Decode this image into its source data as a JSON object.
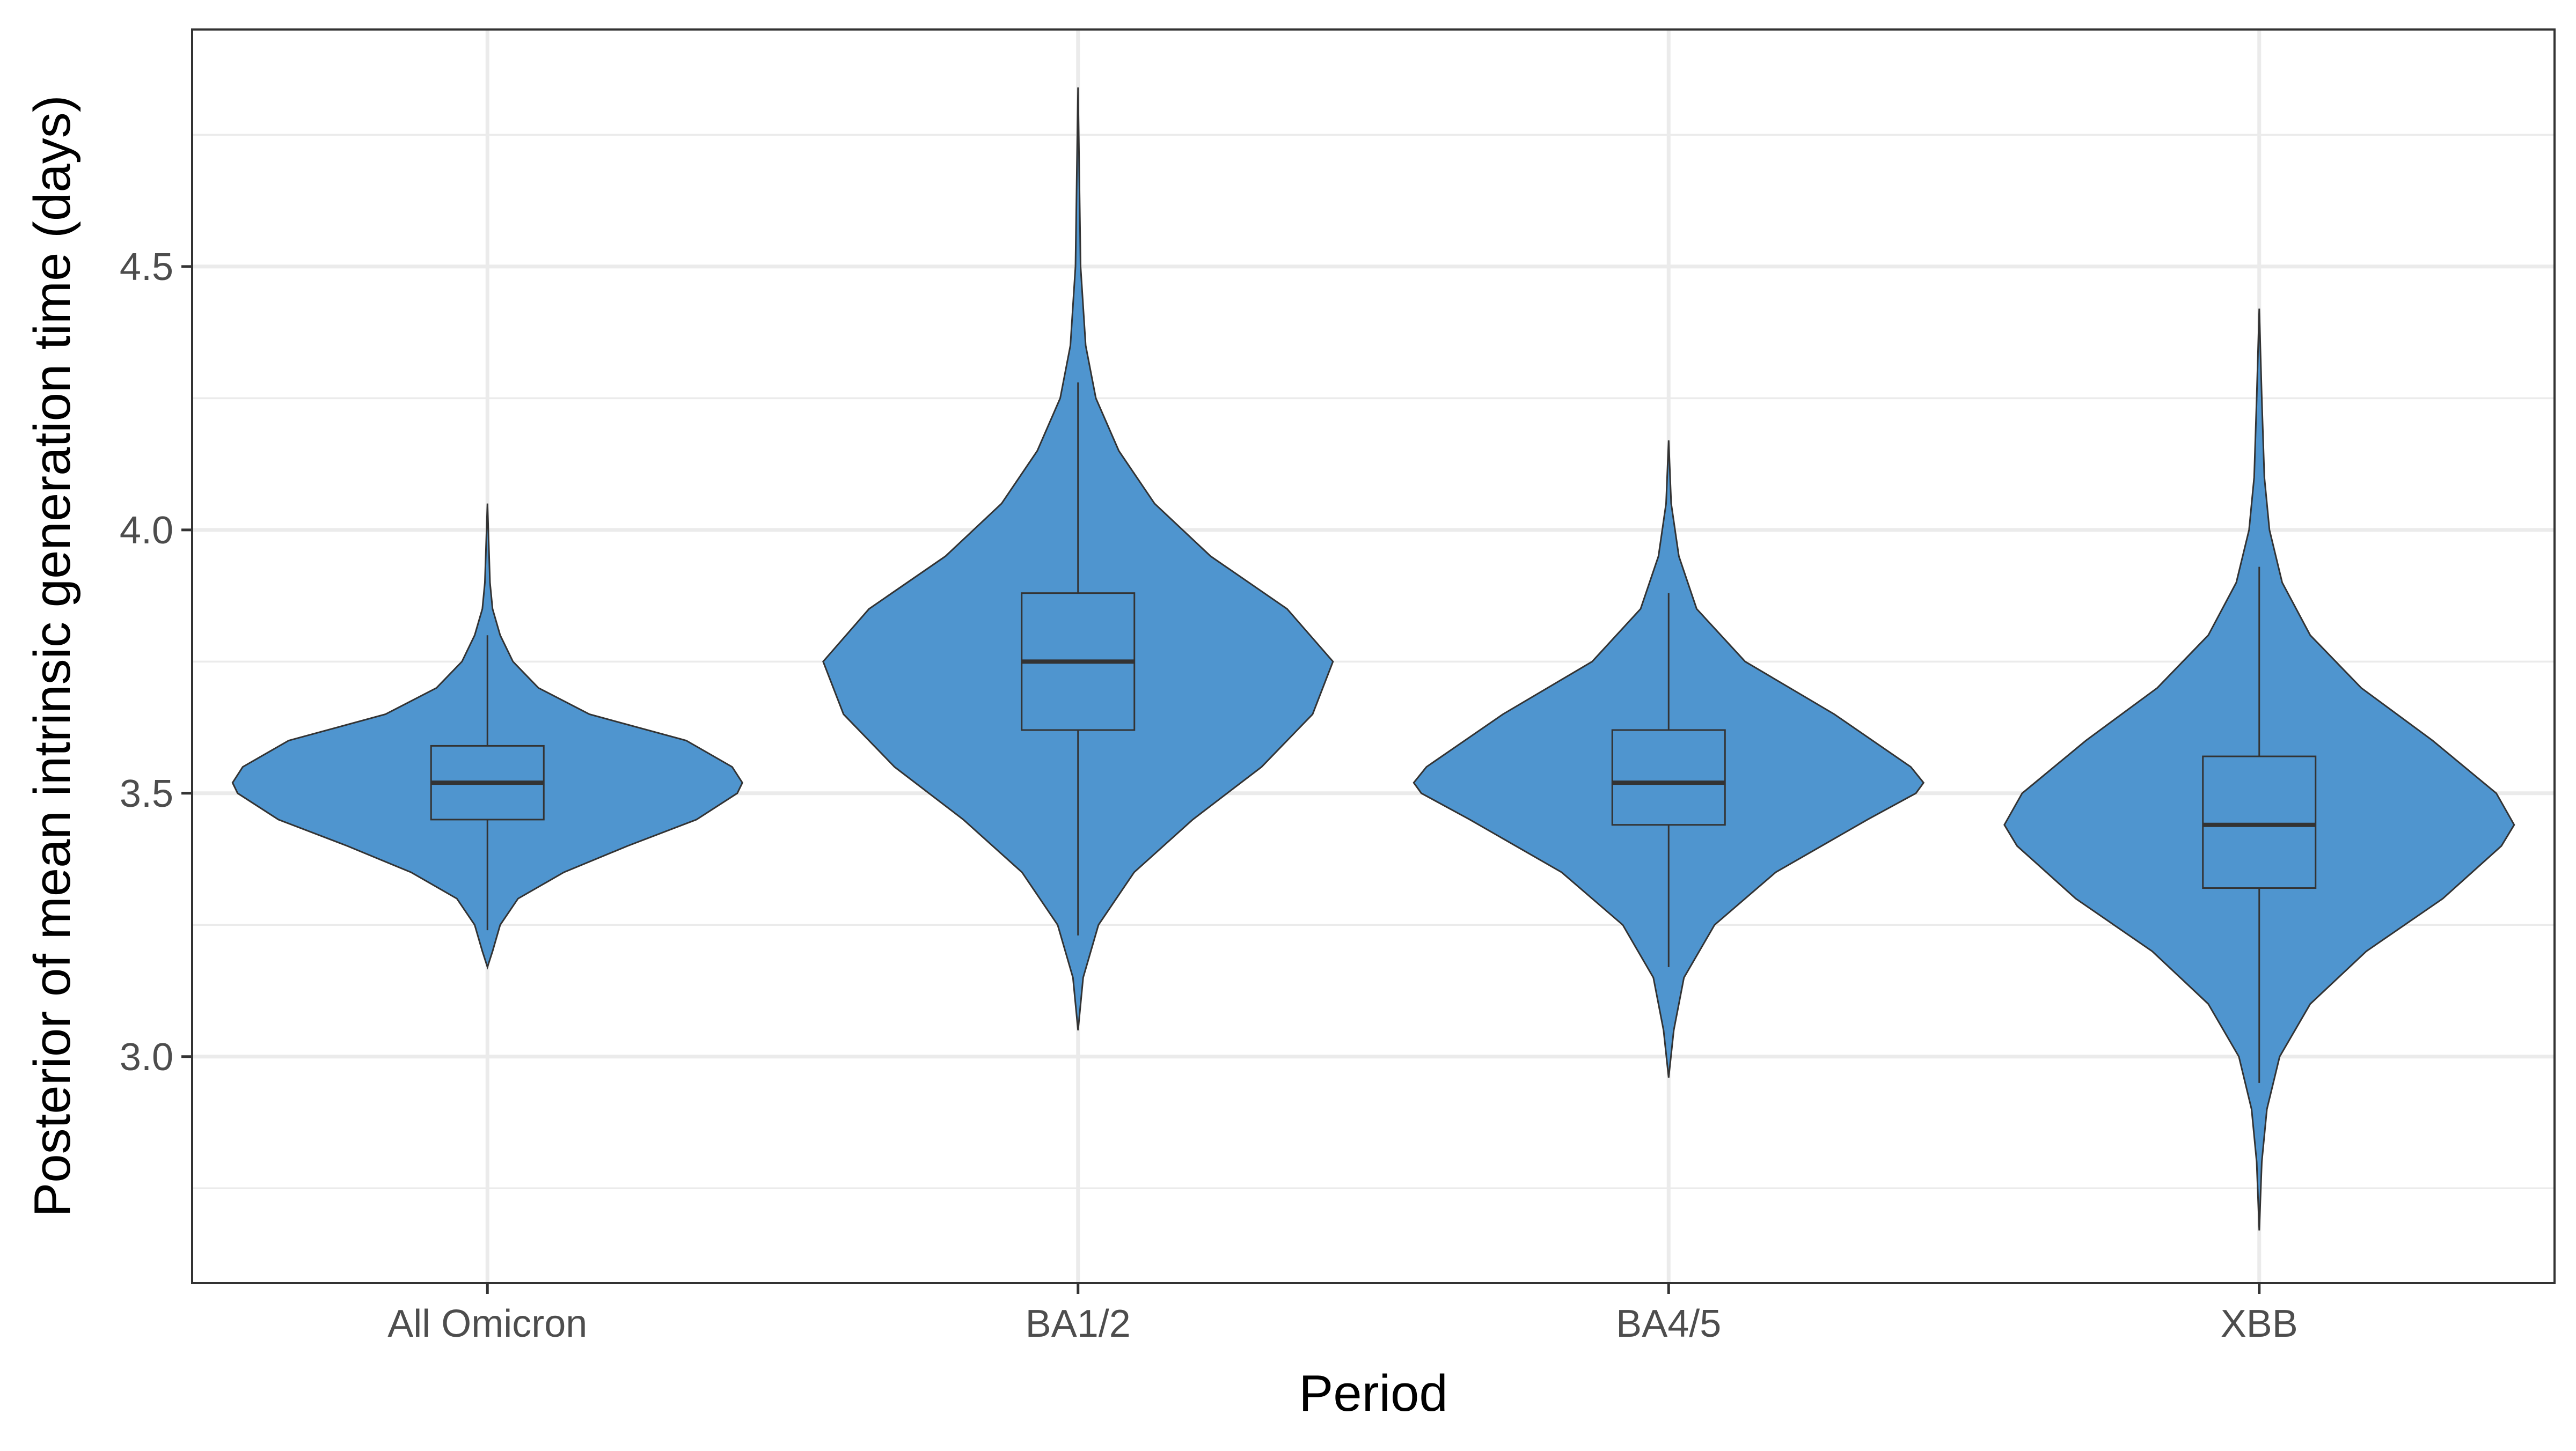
{
  "chart_data": {
    "type": "violin",
    "title": "",
    "xlabel": "Period",
    "ylabel": "Posterior of mean intrinsic generation time (days)",
    "categories": [
      "All Omicron",
      "BA1/2",
      "BA4/5",
      "XBB"
    ],
    "ylim": [
      2.57,
      4.95
    ],
    "y_ticks": [
      3.0,
      3.5,
      4.0,
      4.5
    ],
    "y_tick_labels": [
      "3.0",
      "3.5",
      "4.0",
      "4.5"
    ],
    "y_minor_ticks": [
      2.75,
      3.25,
      3.75,
      4.25,
      4.75
    ],
    "grid": true,
    "legend": "none",
    "colors": {
      "fill": "#4f95cf",
      "outline": "#333333",
      "grid": "#ebebeb"
    },
    "series": [
      {
        "category": "All Omicron",
        "min": 3.17,
        "max": 4.05,
        "box": {
          "q1": 3.45,
          "median": 3.52,
          "q3": 3.59,
          "whisker_low": 3.24,
          "whisker_high": 3.8
        },
        "density": [
          [
            3.17,
            0.0
          ],
          [
            3.2,
            0.02
          ],
          [
            3.25,
            0.05
          ],
          [
            3.3,
            0.12
          ],
          [
            3.35,
            0.3
          ],
          [
            3.4,
            0.55
          ],
          [
            3.45,
            0.82
          ],
          [
            3.5,
            0.98
          ],
          [
            3.52,
            1.0
          ],
          [
            3.55,
            0.96
          ],
          [
            3.6,
            0.78
          ],
          [
            3.65,
            0.4
          ],
          [
            3.7,
            0.2
          ],
          [
            3.75,
            0.1
          ],
          [
            3.8,
            0.05
          ],
          [
            3.85,
            0.02
          ],
          [
            3.9,
            0.01
          ],
          [
            4.05,
            0.0
          ]
        ]
      },
      {
        "category": "BA1/2",
        "min": 3.05,
        "max": 4.84,
        "box": {
          "q1": 3.62,
          "median": 3.75,
          "q3": 3.88,
          "whisker_low": 3.23,
          "whisker_high": 4.28
        },
        "density": [
          [
            3.05,
            0.0
          ],
          [
            3.15,
            0.02
          ],
          [
            3.25,
            0.08
          ],
          [
            3.35,
            0.22
          ],
          [
            3.45,
            0.45
          ],
          [
            3.55,
            0.72
          ],
          [
            3.65,
            0.92
          ],
          [
            3.75,
            1.0
          ],
          [
            3.85,
            0.82
          ],
          [
            3.95,
            0.52
          ],
          [
            4.05,
            0.3
          ],
          [
            4.15,
            0.16
          ],
          [
            4.25,
            0.07
          ],
          [
            4.35,
            0.03
          ],
          [
            4.5,
            0.01
          ],
          [
            4.84,
            0.0
          ]
        ]
      },
      {
        "category": "BA4/5",
        "min": 2.96,
        "max": 4.17,
        "box": {
          "q1": 3.44,
          "median": 3.52,
          "q3": 3.62,
          "whisker_low": 3.17,
          "whisker_high": 3.88
        },
        "density": [
          [
            2.96,
            0.0
          ],
          [
            3.05,
            0.02
          ],
          [
            3.15,
            0.06
          ],
          [
            3.25,
            0.18
          ],
          [
            3.35,
            0.42
          ],
          [
            3.45,
            0.78
          ],
          [
            3.5,
            0.97
          ],
          [
            3.52,
            1.0
          ],
          [
            3.55,
            0.95
          ],
          [
            3.65,
            0.65
          ],
          [
            3.75,
            0.3
          ],
          [
            3.85,
            0.11
          ],
          [
            3.95,
            0.04
          ],
          [
            4.05,
            0.01
          ],
          [
            4.17,
            0.0
          ]
        ]
      },
      {
        "category": "XBB",
        "min": 2.67,
        "max": 4.42,
        "box": {
          "q1": 3.32,
          "median": 3.44,
          "q3": 3.57,
          "whisker_low": 2.95,
          "whisker_high": 3.93
        },
        "density": [
          [
            2.67,
            0.0
          ],
          [
            2.8,
            0.01
          ],
          [
            2.9,
            0.03
          ],
          [
            3.0,
            0.08
          ],
          [
            3.1,
            0.2
          ],
          [
            3.2,
            0.42
          ],
          [
            3.3,
            0.72
          ],
          [
            3.4,
            0.95
          ],
          [
            3.44,
            1.0
          ],
          [
            3.5,
            0.93
          ],
          [
            3.6,
            0.68
          ],
          [
            3.7,
            0.4
          ],
          [
            3.8,
            0.2
          ],
          [
            3.9,
            0.09
          ],
          [
            4.0,
            0.04
          ],
          [
            4.1,
            0.02
          ],
          [
            4.25,
            0.01
          ],
          [
            4.42,
            0.0
          ]
        ]
      }
    ]
  }
}
